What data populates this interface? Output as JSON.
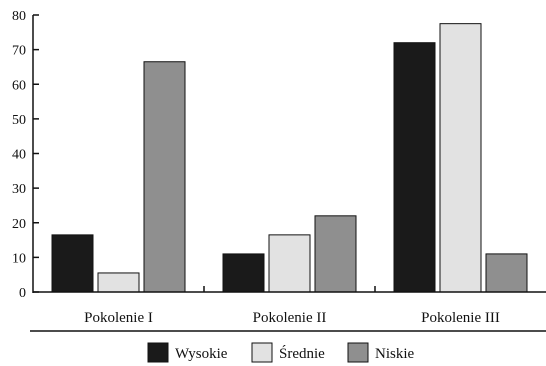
{
  "chart_data": {
    "type": "bar",
    "title": "",
    "xlabel": "",
    "ylabel": "",
    "categories": [
      "Pokolenie I",
      "Pokolenie II",
      "Pokolenie III"
    ],
    "series": [
      {
        "name": "Wysokie",
        "color": "#1a1a1a",
        "values": [
          16.5,
          11,
          72
        ]
      },
      {
        "name": "Średnie",
        "color": "#e2e2e2",
        "values": [
          5.5,
          16.5,
          77.5
        ]
      },
      {
        "name": "Niskie",
        "color": "#8f8f8f",
        "values": [
          66.5,
          22,
          11
        ]
      }
    ],
    "ylim": [
      0,
      80
    ],
    "yticks": [
      0,
      10,
      20,
      30,
      40,
      50,
      60,
      70,
      80
    ],
    "grid": false,
    "legend_position": "bottom"
  }
}
